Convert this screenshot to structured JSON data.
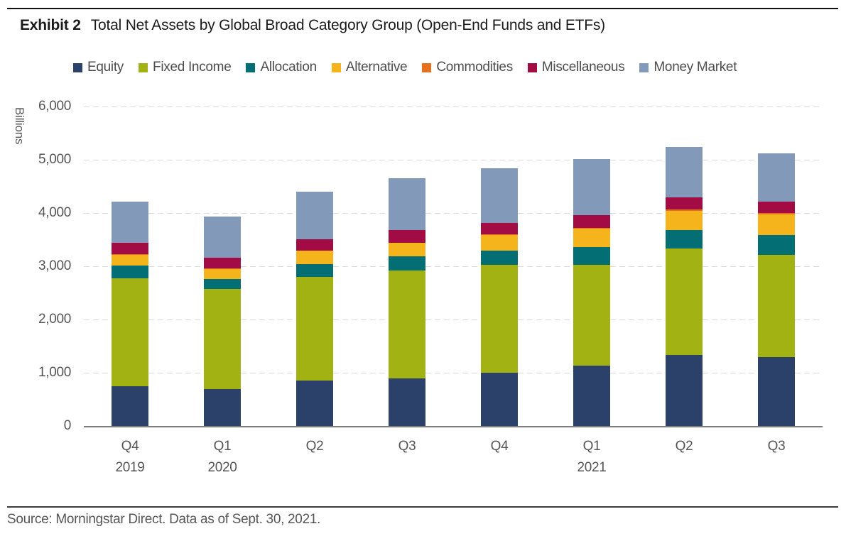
{
  "header": {
    "exhibit_label": "Exhibit 2",
    "title": "Total Net Assets by Global Broad Category Group (Open-End Funds and ETFs)"
  },
  "footer": {
    "source": "Source: Morningstar Direct. Data as of Sept. 30, 2021."
  },
  "chart_data": {
    "type": "bar",
    "stacked": true,
    "title": "Total Net Assets by Global Broad Category Group (Open-End Funds and ETFs)",
    "unit_label": "Billions",
    "categories": [
      "Q4",
      "Q1",
      "Q2",
      "Q3",
      "Q4",
      "Q1",
      "Q2",
      "Q3"
    ],
    "year_labels": [
      {
        "index": 0,
        "label": "2019"
      },
      {
        "index": 1,
        "label": "2020"
      },
      {
        "index": 5,
        "label": "2021"
      }
    ],
    "series": [
      {
        "name": "Equity",
        "color": "#2b4169",
        "values": [
          750,
          690,
          860,
          890,
          995,
          1140,
          1335,
          1300
        ]
      },
      {
        "name": "Fixed Income",
        "color": "#a2b212",
        "values": [
          2025,
          1880,
          1940,
          2035,
          2035,
          1890,
          2005,
          1920
        ]
      },
      {
        "name": "Allocation",
        "color": "#036e74",
        "values": [
          240,
          185,
          245,
          265,
          265,
          325,
          345,
          370
        ]
      },
      {
        "name": "Alternative",
        "color": "#f5b31c",
        "values": [
          205,
          190,
          245,
          245,
          295,
          350,
          360,
          390
        ]
      },
      {
        "name": "Commodities",
        "color": "#e5701e",
        "values": [
          10,
          10,
          10,
          10,
          15,
          20,
          20,
          20
        ]
      },
      {
        "name": "Miscellaneous",
        "color": "#a30b44",
        "values": [
          210,
          200,
          210,
          235,
          215,
          240,
          230,
          215
        ]
      },
      {
        "name": "Money Market",
        "color": "#8399b9",
        "values": [
          780,
          780,
          890,
          975,
          1020,
          1055,
          950,
          905
        ]
      }
    ],
    "totals": [
      4220,
      3935,
      4400,
      4655,
      4840,
      5020,
      5245,
      5120
    ],
    "ylim": [
      0,
      6000
    ],
    "yticks": [
      0,
      1000,
      2000,
      3000,
      4000,
      5000,
      6000
    ],
    "ytick_labels": [
      "0",
      "1,000",
      "2,000",
      "3,000",
      "4,000",
      "5,000",
      "6,000"
    ],
    "grid": "horizontal-dashed",
    "gridline_color": "#d9d9d9",
    "axis_color": "#7d7d7d",
    "legend_position": "top"
  }
}
